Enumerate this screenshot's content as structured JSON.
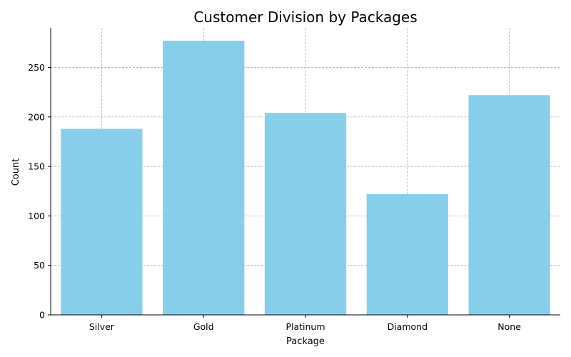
{
  "chart_data": {
    "type": "bar",
    "title": "Customer Division by Packages",
    "xlabel": "Package",
    "ylabel": "Count",
    "categories": [
      "Silver",
      "Gold",
      "Platinum",
      "Diamond",
      "None"
    ],
    "values": [
      188,
      277,
      204,
      122,
      222
    ],
    "ylim": [
      0,
      290
    ],
    "yticks": [
      0,
      50,
      100,
      150,
      200,
      250
    ],
    "grid": true,
    "bar_color": "#87CEEB"
  }
}
